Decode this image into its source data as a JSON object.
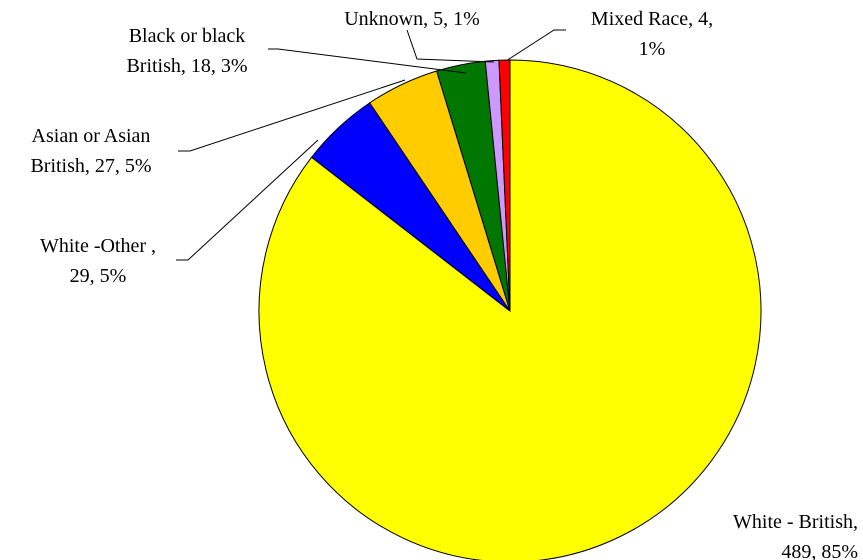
{
  "chart_data": {
    "type": "pie",
    "title": "",
    "start_angle_deg": 0,
    "direction": "clockwise",
    "legend": "none",
    "slices": [
      {
        "label": "White - British",
        "value": 489,
        "percent": "85%",
        "color": "#FFFF00",
        "label_lines": [
          "White - British,",
          "489, 85%"
        ]
      },
      {
        "label": "White -Other ",
        "value": 29,
        "percent": "5%",
        "color": "#0000FF",
        "label_lines": [
          "White -Other ,",
          "29, 5%"
        ]
      },
      {
        "label": "Asian or Asian British",
        "value": 27,
        "percent": "5%",
        "color": "#FFCC00",
        "label_lines": [
          "Asian or Asian",
          "British, 27, 5%"
        ]
      },
      {
        "label": "Black or black British",
        "value": 18,
        "percent": "3%",
        "color": "#007700",
        "label_lines": [
          "Black or black",
          "British, 18, 3%"
        ]
      },
      {
        "label": "Unknown",
        "value": 5,
        "percent": "1%",
        "color": "#CC99FF",
        "label_lines": [
          "Unknown, 5, 1%"
        ]
      },
      {
        "label": "Mixed Race",
        "value": 4,
        "percent": "1%",
        "color": "#FF0000",
        "label_lines": [
          "Mixed Race, 4,",
          "1%"
        ]
      }
    ]
  }
}
